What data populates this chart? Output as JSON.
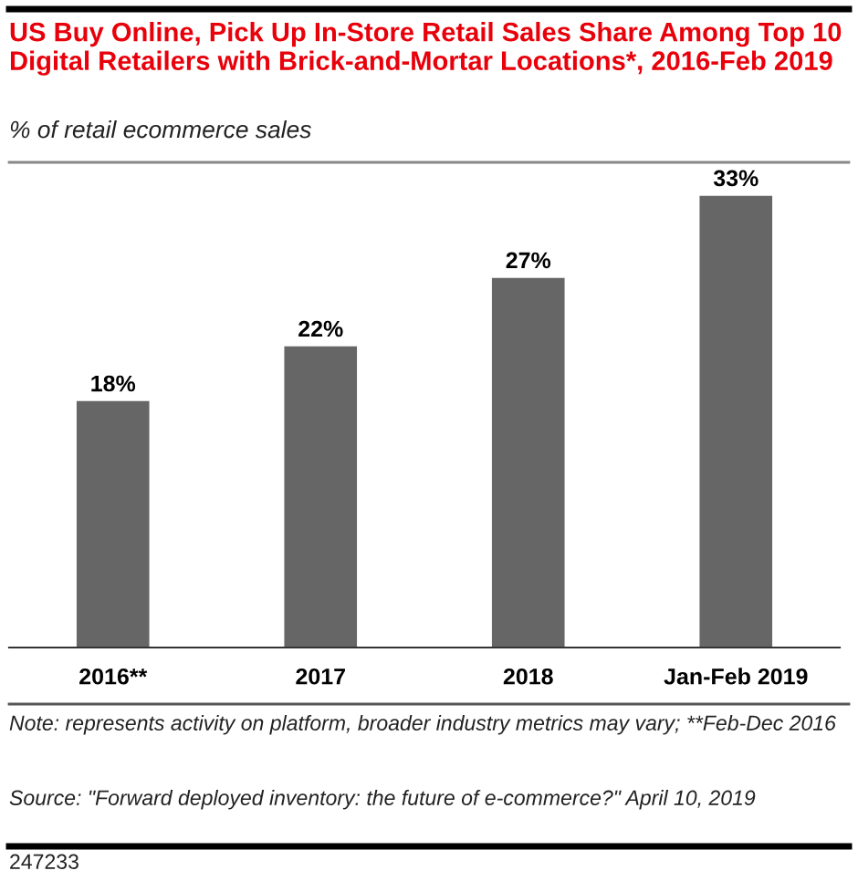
{
  "chart_data": {
    "type": "bar",
    "title": "US Buy Online, Pick Up In-Store Retail Sales Share Among Top 10 Digital Retailers with Brick-and-Mortar Locations*, 2016-Feb 2019",
    "subtitle": "% of retail ecommerce sales",
    "categories": [
      "2016**",
      "2017",
      "2018",
      "Jan-Feb 2019"
    ],
    "values": [
      18,
      22,
      27,
      33
    ],
    "color": "#666666",
    "value_labels": [
      "18%",
      "22%",
      "27%",
      "33%"
    ],
    "annotations": [
      "Note: represents activity on platform, broader industry metrics may vary; **Feb-Dec 2016",
      "Source: \"Forward deployed inventory: the future of e-commerce?\" April 10, 2019",
      "247233"
    ],
    "grid": false,
    "legend": false
  }
}
